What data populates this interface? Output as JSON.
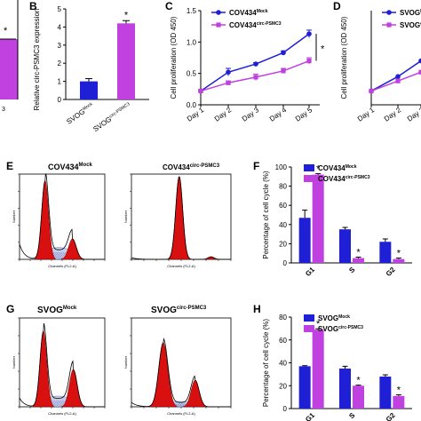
{
  "panel_labels": {
    "B": "B",
    "C": "C",
    "D": "D",
    "E": "E",
    "F": "F",
    "G": "G",
    "H": "H"
  },
  "colors": {
    "blue": "#1f1fd6",
    "magenta": "#c040e0",
    "red": "#d81010",
    "hatch": "#3b4bb0"
  },
  "panel_a": {
    "star": "*",
    "tick_label": "3"
  },
  "flow": {
    "e_left_title": "COV434",
    "e_left_sup": "Mock",
    "e_right_title": "COV434",
    "e_right_sup": "circ-PSMC3",
    "g_left_title": "SVOG",
    "g_left_sup": "Mock",
    "g_right_title": "SVOG",
    "g_right_sup": "circ-PSMC3",
    "y_axis": "Number",
    "x_axis": "Channels (FL2-A)"
  },
  "chart_data": [
    {
      "id": "B",
      "type": "bar",
      "ylabel": "Relative circ-PSMC3 expression",
      "categories": [
        {
          "base": "SVOG",
          "sup": "Mock"
        },
        {
          "base": "SVOG",
          "sup": "circ-PSMC3"
        }
      ],
      "ylim": [
        0,
        5
      ],
      "yticks": [
        "0",
        "1",
        "2",
        "3",
        "4",
        "5"
      ],
      "values": [
        1.0,
        4.2
      ],
      "errors": [
        0.15,
        0.15
      ],
      "annotations": [
        "",
        "*"
      ]
    },
    {
      "id": "C",
      "type": "line",
      "ylabel": "Cell proliferation (OD 450)",
      "x": [
        "Day 1",
        "Day 2",
        "Day 3",
        "Day 4",
        "Day 5"
      ],
      "ylim": [
        0.0,
        1.5
      ],
      "yticks": [
        "0.0",
        "0.5",
        "1.0",
        "1.5"
      ],
      "series": [
        {
          "base": "COV434",
          "sup": "Mock",
          "values": [
            0.22,
            0.52,
            0.65,
            0.83,
            1.13
          ],
          "errors": [
            0.02,
            0.06,
            0.02,
            0.03,
            0.06
          ]
        },
        {
          "base": "COV434",
          "sup": "circ-PSMC3",
          "values": [
            0.22,
            0.35,
            0.44,
            0.54,
            0.7
          ],
          "errors": [
            0.02,
            0.03,
            0.05,
            0.04,
            0.05
          ]
        }
      ],
      "star": "*"
    },
    {
      "id": "D",
      "type": "line",
      "ylabel": "Cell proliferation (OD 450)",
      "x": [
        "Day 1",
        "Day 2",
        "Day 3"
      ],
      "ylim": [
        0.0,
        1.5
      ],
      "series": [
        {
          "base": "SVOG",
          "sup": "Mock",
          "values": [
            0.22,
            0.45,
            0.7
          ]
        },
        {
          "base": "SVOG",
          "sup": "circ-PSMC3",
          "values": [
            0.22,
            0.38,
            0.52
          ]
        }
      ]
    },
    {
      "id": "F",
      "type": "bar",
      "ylabel": "Percentage of cell cycle (%)",
      "categories": [
        "G1",
        "S",
        "G2"
      ],
      "ylim": [
        0,
        100
      ],
      "yticks": [
        "0",
        "20",
        "40",
        "60",
        "80",
        "100"
      ],
      "series": [
        {
          "base": "COV434",
          "sup": "Mock",
          "values": [
            47,
            35,
            22
          ],
          "errors": [
            8,
            2,
            3
          ]
        },
        {
          "base": "COV434",
          "sup": "circ-PSMC3",
          "values": [
            92,
            5,
            4
          ],
          "errors": [
            1,
            1,
            1
          ]
        }
      ],
      "annotations": [
        "*",
        "*",
        "*"
      ]
    },
    {
      "id": "H",
      "type": "bar",
      "ylabel": "Percentage of cell cycle (%)",
      "categories": [
        "G1",
        "S",
        "G2"
      ],
      "ylim": [
        0,
        80
      ],
      "yticks": [
        "0",
        "20",
        "40",
        "60",
        "80"
      ],
      "series": [
        {
          "base": "SVOG",
          "sup": "Mock",
          "values": [
            37,
            35,
            28
          ],
          "errors": [
            0.5,
            2,
            1.5
          ]
        },
        {
          "base": "SVOG",
          "sup": "circ-PSMC3",
          "values": [
            69,
            20,
            11
          ],
          "errors": [
            0.8,
            0.5,
            1
          ]
        }
      ],
      "annotations": [
        "*",
        "*",
        "*"
      ]
    }
  ]
}
